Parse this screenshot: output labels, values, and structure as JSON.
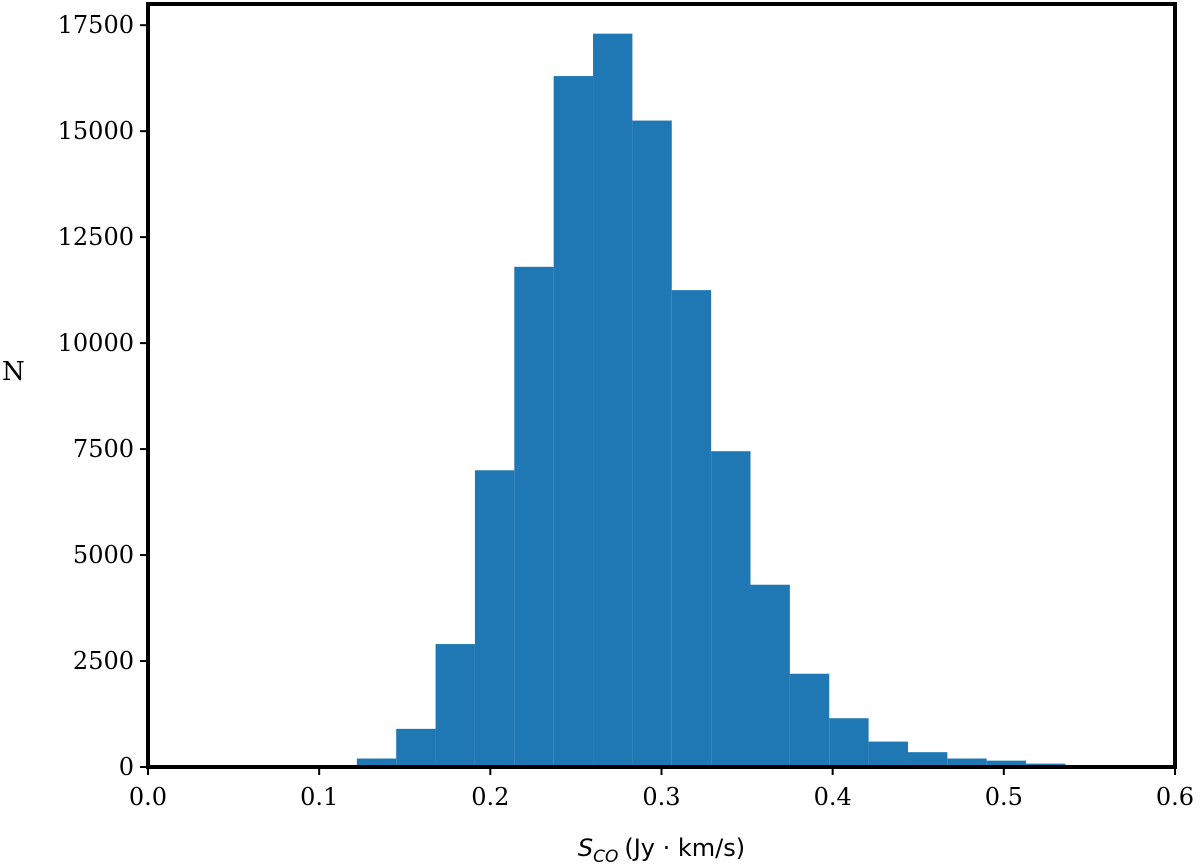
{
  "chart_data": {
    "type": "bar",
    "title": "",
    "xlabel": {
      "symbol": "S",
      "subscript": "CO",
      "unit": "(Jy · km/s)"
    },
    "ylabel": "N",
    "xlim": [
      0.0,
      0.6
    ],
    "ylim": [
      0,
      18000
    ],
    "xticks": [
      0.0,
      0.1,
      0.2,
      0.3,
      0.4,
      0.5,
      0.6
    ],
    "xtick_labels": [
      "0.0",
      "0.1",
      "0.2",
      "0.3",
      "0.4",
      "0.5",
      "0.6"
    ],
    "yticks": [
      0,
      2500,
      5000,
      7500,
      10000,
      12500,
      15000,
      17500
    ],
    "ytick_labels": [
      "0",
      "2500",
      "5000",
      "7500",
      "10000",
      "12500",
      "15000",
      "17500"
    ],
    "bin_edges": [
      0.122,
      0.145,
      0.168,
      0.191,
      0.214,
      0.237,
      0.26,
      0.283,
      0.306,
      0.329,
      0.352,
      0.375,
      0.398,
      0.421,
      0.444,
      0.467,
      0.49,
      0.513,
      0.536
    ],
    "values": [
      200,
      900,
      2900,
      7000,
      11800,
      16300,
      17300,
      15250,
      11250,
      7450,
      4300,
      2200,
      1150,
      600,
      350,
      200,
      150,
      80
    ],
    "bar_color": "#1f77b4",
    "grid": false,
    "legend": "none"
  }
}
